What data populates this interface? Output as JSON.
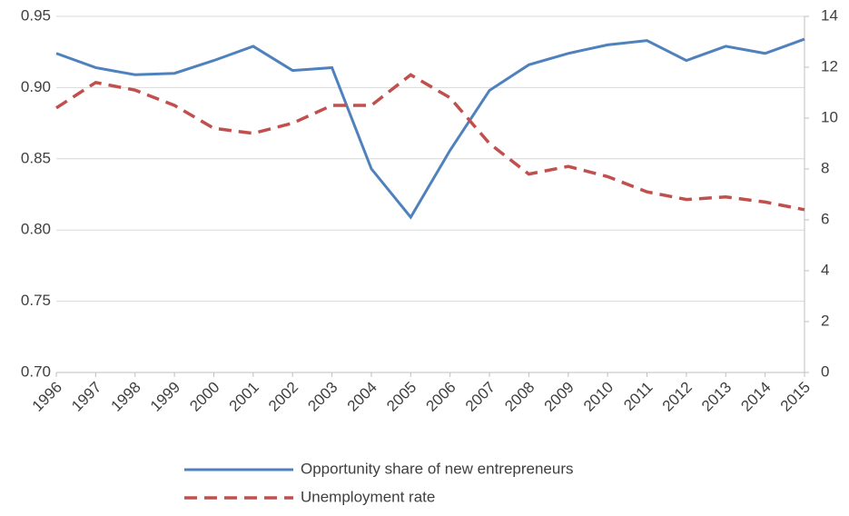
{
  "chart_data": {
    "type": "line",
    "x": [
      1996,
      1997,
      1998,
      1999,
      2000,
      2001,
      2002,
      2003,
      2004,
      2005,
      2006,
      2007,
      2008,
      2009,
      2010,
      2011,
      2012,
      2013,
      2014,
      2015
    ],
    "xlim": [
      1996,
      2015
    ],
    "series": [
      {
        "name": "Opportunity share of new entrepreneurs",
        "color": "#4f81bd",
        "dash": false,
        "values": [
          0.924,
          0.914,
          0.909,
          0.91,
          0.919,
          0.929,
          0.912,
          0.914,
          0.843,
          0.809,
          0.856,
          0.898,
          0.916,
          0.924,
          0.93,
          0.933,
          0.919,
          0.929,
          0.924,
          0.934
        ]
      },
      {
        "name": "Unemployment rate",
        "color": "#c0504d",
        "dash": true,
        "axis": "y2",
        "values": [
          10.4,
          11.4,
          11.1,
          10.5,
          9.6,
          9.4,
          9.8,
          10.5,
          10.5,
          11.7,
          10.8,
          9.0,
          7.8,
          8.1,
          7.7,
          7.1,
          6.8,
          6.9,
          6.7,
          6.4
        ]
      }
    ],
    "ylim": [
      0.7,
      0.95
    ],
    "yticks": [
      {
        "value": 0.7,
        "label": "0.70"
      },
      0.75,
      {
        "value": 0.8,
        "label": "0.80"
      },
      0.85,
      {
        "value": 0.9,
        "label": "0.90"
      },
      0.95
    ],
    "y2lim": [
      0,
      14
    ],
    "y2ticks": [
      0,
      2,
      4,
      6,
      8,
      10,
      12,
      14
    ],
    "grid": true,
    "legend": "bottom"
  }
}
